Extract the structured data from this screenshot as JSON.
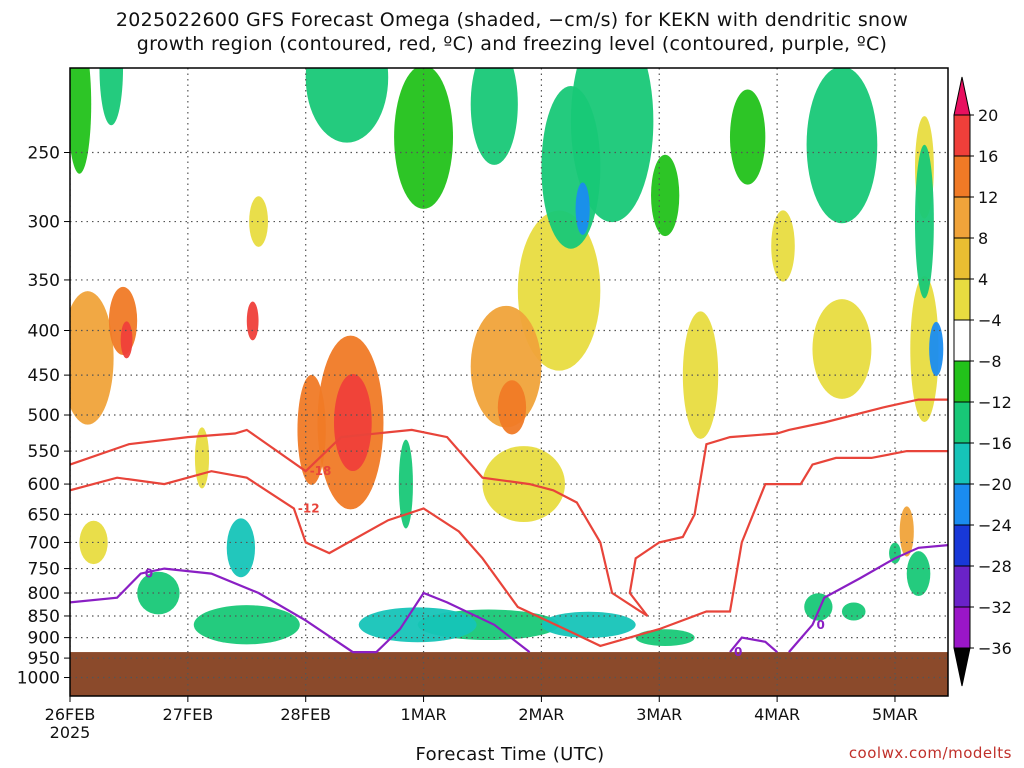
{
  "title": {
    "line1": "2025022600 GFS Forecast Omega (shaded, −cm/s) for KEKN with dendritic snow",
    "line2": "growth region (contoured, red, ºC) and freezing level (contoured, purple, ºC)"
  },
  "footer": {
    "xlabel": "Forecast Time (UTC)",
    "credit": "coolwx.com/modelts"
  },
  "colors": {
    "terrain": "#8b4a2b",
    "dgz_contour": "#e8443a",
    "freezing_contour": "#8a1fc4",
    "grid": "#555555"
  },
  "chart_data": {
    "type": "heatmap",
    "title": "2025022600 GFS Forecast Omega (shaded, −cm/s) for KEKN with dendritic snow growth region (contoured, red, ºC) and freezing level (contoured, purple, ºC)",
    "xlabel": "Forecast Time (UTC)",
    "ylabel": "",
    "x_ticks": [
      "26FEB",
      "27FEB",
      "28FEB",
      "1MAR",
      "2MAR",
      "3MAR",
      "4MAR",
      "5MAR"
    ],
    "x_tick_sub": [
      "2025",
      "",
      "",
      "",
      "",
      "",
      "",
      ""
    ],
    "x_range_days": [
      0,
      7.45
    ],
    "y_ticks": [
      250,
      300,
      350,
      400,
      450,
      500,
      550,
      600,
      650,
      700,
      750,
      800,
      850,
      900,
      950,
      1000
    ],
    "y_range_hpa": [
      200,
      1050
    ],
    "y_scale": "log-pressure",
    "grid": true,
    "colorbar": {
      "labels": [
        "20",
        "16",
        "12",
        "8",
        "4",
        "−4",
        "−8",
        "−12",
        "−16",
        "−20",
        "−24",
        "−28",
        "−32",
        "−36"
      ],
      "colors": [
        "#e8105f",
        "#ef3f3a",
        "#f07a26",
        "#f0a33a",
        "#eabe32",
        "#e8dc40",
        "#ffffff",
        "#22c21a",
        "#18c877",
        "#16c4b8",
        "#1a8cf0",
        "#1838d8",
        "#6a22c8",
        "#9a16c8",
        "#a0a0a0",
        "#000000"
      ]
    },
    "terrain_top_hpa": 935,
    "omega_regions": [
      {
        "x": 0.15,
        "p": 430,
        "dx": 0.22,
        "dp": 150,
        "value": 10
      },
      {
        "x": 0.45,
        "p": 390,
        "dx": 0.12,
        "dp": 70,
        "value": 14
      },
      {
        "x": 0.48,
        "p": 410,
        "dx": 0.05,
        "dp": 40,
        "value": 18
      },
      {
        "x": 1.55,
        "p": 390,
        "dx": 0.05,
        "dp": 40,
        "value": 16
      },
      {
        "x": 2.05,
        "p": 520,
        "dx": 0.12,
        "dp": 150,
        "value": 14
      },
      {
        "x": 2.38,
        "p": 510,
        "dx": 0.28,
        "dp": 230,
        "value": 12
      },
      {
        "x": 2.4,
        "p": 510,
        "dx": 0.16,
        "dp": 130,
        "value": 18
      },
      {
        "x": 0.2,
        "p": 700,
        "dx": 0.12,
        "dp": 80,
        "value": 4
      },
      {
        "x": 1.12,
        "p": 560,
        "dx": 0.06,
        "dp": 90,
        "value": 4
      },
      {
        "x": 1.6,
        "p": 300,
        "dx": 0.08,
        "dp": 40,
        "value": 4
      },
      {
        "x": 3.7,
        "p": 440,
        "dx": 0.3,
        "dp": 140,
        "value": 10
      },
      {
        "x": 3.75,
        "p": 490,
        "dx": 0.12,
        "dp": 70,
        "value": 14
      },
      {
        "x": 3.85,
        "p": 600,
        "dx": 0.35,
        "dp": 120,
        "value": 6
      },
      {
        "x": 4.15,
        "p": 360,
        "dx": 0.35,
        "dp": 150,
        "value": 4
      },
      {
        "x": 5.35,
        "p": 450,
        "dx": 0.15,
        "dp": 150,
        "value": 4
      },
      {
        "x": 6.05,
        "p": 320,
        "dx": 0.1,
        "dp": 60,
        "value": 4
      },
      {
        "x": 6.55,
        "p": 420,
        "dx": 0.25,
        "dp": 110,
        "value": 4
      },
      {
        "x": 7.25,
        "p": 420,
        "dx": 0.12,
        "dp": 160,
        "value": 4
      },
      {
        "x": 7.1,
        "p": 680,
        "dx": 0.06,
        "dp": 90,
        "value": 10
      },
      {
        "x": 7.25,
        "p": 260,
        "dx": 0.08,
        "dp": 70,
        "value": 4
      },
      {
        "x": 0.35,
        "p": 200,
        "dx": 0.1,
        "dp": 60,
        "value": -8
      },
      {
        "x": 0.08,
        "p": 220,
        "dx": 0.1,
        "dp": 80,
        "value": -6
      },
      {
        "x": 2.35,
        "p": 205,
        "dx": 0.35,
        "dp": 70,
        "value": -10
      },
      {
        "x": 3.0,
        "p": 240,
        "dx": 0.25,
        "dp": 90,
        "value": -6
      },
      {
        "x": 3.6,
        "p": 220,
        "dx": 0.2,
        "dp": 70,
        "value": -8
      },
      {
        "x": 4.25,
        "p": 260,
        "dx": 0.25,
        "dp": 110,
        "value": -10
      },
      {
        "x": 4.35,
        "p": 290,
        "dx": 0.06,
        "dp": 40,
        "value": -16
      },
      {
        "x": 4.6,
        "p": 230,
        "dx": 0.35,
        "dp": 120,
        "value": -8
      },
      {
        "x": 5.05,
        "p": 280,
        "dx": 0.12,
        "dp": 60,
        "value": -6
      },
      {
        "x": 5.75,
        "p": 240,
        "dx": 0.15,
        "dp": 60,
        "value": -6
      },
      {
        "x": 6.55,
        "p": 245,
        "dx": 0.3,
        "dp": 100,
        "value": -8
      },
      {
        "x": 7.25,
        "p": 300,
        "dx": 0.08,
        "dp": 120,
        "value": -10
      },
      {
        "x": 7.35,
        "p": 420,
        "dx": 0.06,
        "dp": 60,
        "value": -18
      },
      {
        "x": 1.45,
        "p": 710,
        "dx": 0.12,
        "dp": 110,
        "value": -12
      },
      {
        "x": 1.5,
        "p": 870,
        "dx": 0.45,
        "dp": 90,
        "value": -10
      },
      {
        "x": 0.75,
        "p": 800,
        "dx": 0.18,
        "dp": 90,
        "value": -10
      },
      {
        "x": 2.85,
        "p": 600,
        "dx": 0.06,
        "dp": 140,
        "value": -10
      },
      {
        "x": 2.95,
        "p": 870,
        "dx": 0.5,
        "dp": 80,
        "value": -12
      },
      {
        "x": 3.55,
        "p": 870,
        "dx": 0.6,
        "dp": 70,
        "value": -10
      },
      {
        "x": 4.4,
        "p": 870,
        "dx": 0.4,
        "dp": 60,
        "value": -12
      },
      {
        "x": 5.05,
        "p": 900,
        "dx": 0.25,
        "dp": 40,
        "value": -8
      },
      {
        "x": 6.35,
        "p": 830,
        "dx": 0.12,
        "dp": 60,
        "value": -8
      },
      {
        "x": 6.65,
        "p": 840,
        "dx": 0.1,
        "dp": 40,
        "value": -10
      },
      {
        "x": 7.2,
        "p": 760,
        "dx": 0.1,
        "dp": 90,
        "value": -8
      },
      {
        "x": 7.0,
        "p": 720,
        "dx": 0.05,
        "dp": 40,
        "value": -8
      }
    ],
    "dgz_contours": [
      {
        "label": "-18",
        "points": [
          [
            0,
            570
          ],
          [
            0.5,
            540
          ],
          [
            1.0,
            530
          ],
          [
            1.4,
            525
          ],
          [
            1.5,
            520
          ],
          [
            2.0,
            580
          ],
          [
            2.3,
            530
          ],
          [
            2.9,
            520
          ],
          [
            3.2,
            530
          ],
          [
            3.5,
            590
          ],
          [
            3.9,
            600
          ],
          [
            4.1,
            610
          ],
          [
            4.3,
            630
          ],
          [
            4.5,
            700
          ],
          [
            4.6,
            800
          ],
          [
            4.9,
            850
          ],
          [
            4.75,
            800
          ],
          [
            4.8,
            730
          ],
          [
            5.0,
            700
          ],
          [
            5.2,
            690
          ],
          [
            5.3,
            650
          ],
          [
            5.4,
            540
          ],
          [
            5.6,
            530
          ],
          [
            6.0,
            525
          ],
          [
            6.1,
            520
          ],
          [
            6.4,
            510
          ],
          [
            6.9,
            490
          ],
          [
            7.2,
            480
          ],
          [
            7.45,
            480
          ]
        ]
      },
      {
        "label": "-12",
        "points": [
          [
            0,
            610
          ],
          [
            0.4,
            590
          ],
          [
            0.8,
            600
          ],
          [
            1.2,
            580
          ],
          [
            1.5,
            590
          ],
          [
            1.9,
            640
          ],
          [
            2.0,
            700
          ],
          [
            2.2,
            720
          ],
          [
            2.7,
            660
          ],
          [
            3.0,
            640
          ],
          [
            3.3,
            680
          ],
          [
            3.5,
            730
          ],
          [
            3.8,
            830
          ],
          [
            4.2,
            880
          ],
          [
            4.5,
            920
          ],
          [
            5.0,
            880
          ],
          [
            5.4,
            840
          ],
          [
            5.6,
            840
          ],
          [
            5.7,
            700
          ],
          [
            5.9,
            600
          ],
          [
            6.2,
            600
          ],
          [
            6.3,
            570
          ],
          [
            6.5,
            560
          ],
          [
            6.8,
            560
          ],
          [
            7.1,
            550
          ],
          [
            7.45,
            550
          ]
        ]
      }
    ],
    "freezing_contours": [
      {
        "label": "0",
        "points": [
          [
            0,
            820
          ],
          [
            0.4,
            810
          ],
          [
            0.6,
            760
          ],
          [
            0.8,
            750
          ],
          [
            1.2,
            760
          ],
          [
            1.6,
            800
          ],
          [
            2.0,
            860
          ],
          [
            2.4,
            935
          ],
          [
            2.6,
            935
          ],
          [
            2.8,
            880
          ],
          [
            3.0,
            800
          ],
          [
            3.2,
            820
          ],
          [
            3.6,
            870
          ],
          [
            3.9,
            935
          ]
        ]
      },
      {
        "label": "0",
        "points": [
          [
            5.6,
            935
          ],
          [
            5.7,
            900
          ],
          [
            5.9,
            910
          ],
          [
            6.0,
            935
          ]
        ]
      },
      {
        "label": "0",
        "points": [
          [
            6.1,
            935
          ],
          [
            6.3,
            870
          ],
          [
            6.4,
            810
          ],
          [
            6.7,
            770
          ],
          [
            7.0,
            730
          ],
          [
            7.2,
            710
          ],
          [
            7.45,
            705
          ]
        ]
      }
    ]
  }
}
